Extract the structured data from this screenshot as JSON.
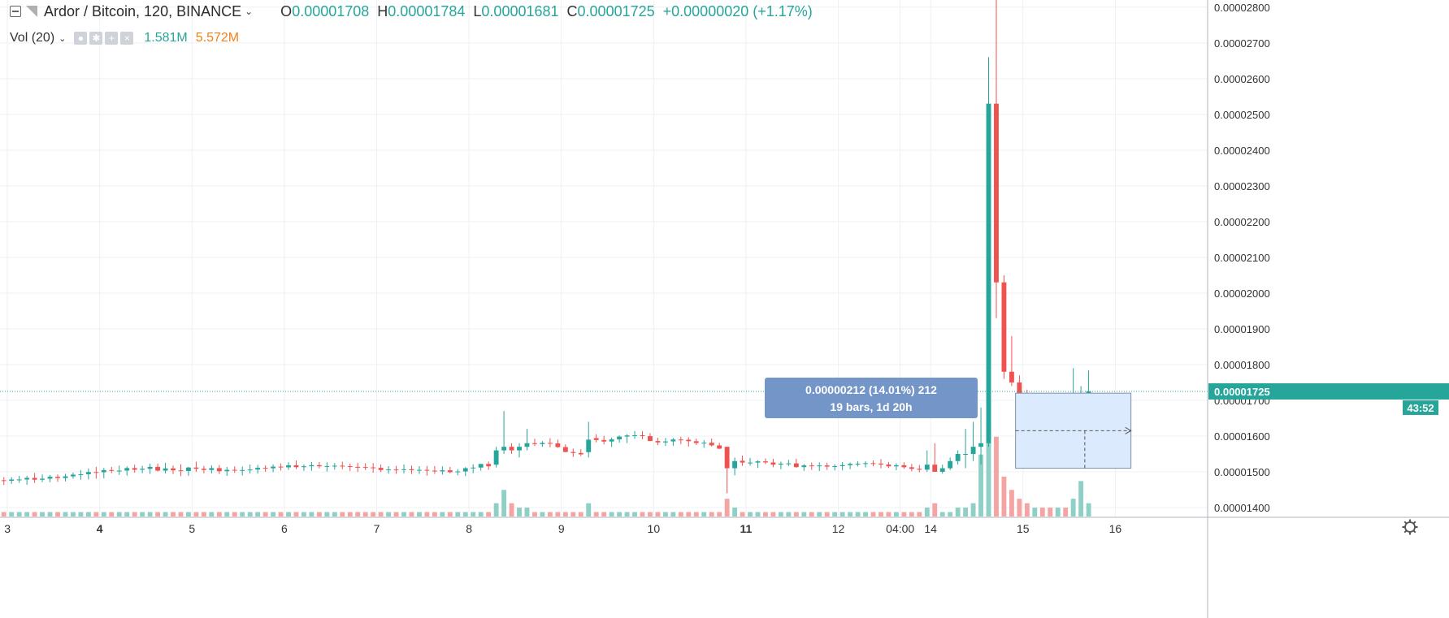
{
  "header": {
    "symbol": "Ardor / Bitcoin, 120, BINANCE",
    "o_label": "O",
    "o_value": "0.00001708",
    "h_label": "H",
    "h_value": "0.00001784",
    "l_label": "L",
    "l_value": "0.00001681",
    "c_label": "C",
    "c_value": "0.00001725",
    "change": "+0.00000020 (+1.17%)"
  },
  "volume_indicator": {
    "label": "Vol (20)",
    "value_1": "1.581M",
    "value_2": "5.572M"
  },
  "price_tag": {
    "price": "0.00001725",
    "countdown": "43:52"
  },
  "measure_tooltip": {
    "line1": "0.00000212 (14.01%) 212",
    "line2": "19 bars, 1d 20h"
  },
  "colors": {
    "up": "#26a69a",
    "down": "#ef5350",
    "up_volume": "#8fd0c6",
    "down_volume": "#f4a5a3",
    "measure_fill": "#dbeafc",
    "tooltip_bg": "#6d8fc4"
  },
  "icons": [
    "collapse-icon",
    "symbol-flag-icon",
    "chevron-down-icon",
    "eye-icon",
    "settings-icon",
    "plus-icon",
    "close-icon",
    "gear-icon"
  ],
  "chart_data": {
    "type": "candlestick",
    "symbol": "Ardor / Bitcoin",
    "interval_minutes": 120,
    "exchange": "BINANCE",
    "y_ticks": [
      1.4e-05,
      1.5e-05,
      1.6e-05,
      1.7e-05,
      1.8e-05,
      1.9e-05,
      2e-05,
      2.1e-05,
      2.2e-05,
      2.3e-05,
      2.4e-05,
      2.5e-05,
      2.6e-05,
      2.7e-05,
      2.8e-05
    ],
    "y_tick_labels": [
      "0.00001400",
      "0.00001500",
      "0.00001600",
      "0.00001700",
      "0.00001800",
      "0.00001900",
      "0.00002000",
      "0.00002100",
      "0.00002200",
      "0.00002300",
      "0.00002400",
      "0.00002500",
      "0.00002600",
      "0.00002700",
      "0.00002800"
    ],
    "ylim": [
      1.375e-05,
      2.82e-05
    ],
    "x_ticks": [
      {
        "t": 2,
        "label": "3"
      },
      {
        "t": 3,
        "label": "4"
      },
      {
        "t": 4,
        "label": "5"
      },
      {
        "t": 5,
        "label": "6"
      },
      {
        "t": 6,
        "label": "7"
      },
      {
        "t": 7,
        "label": "8"
      },
      {
        "t": 8,
        "label": "9"
      },
      {
        "t": 9,
        "label": "10"
      },
      {
        "t": 10,
        "label": "11"
      },
      {
        "t": 11,
        "label": "12"
      },
      {
        "t": 11.67,
        "label": "04:00"
      },
      {
        "t": 12,
        "label": "14"
      },
      {
        "t": 13,
        "label": "15"
      },
      {
        "t": 14,
        "label": "16"
      }
    ],
    "bold_x_labels": [
      "4",
      "11"
    ],
    "xlim": [
      1.92,
      15.0
    ],
    "bar_days": 0.08333,
    "ohlcv": [
      [
        1.4764e-05,
        1.4851e-05,
        1.4636e-05,
        1.4748e-05,
        1
      ],
      [
        1.475e-05,
        1.4853e-05,
        1.4664e-05,
        1.4784e-05,
        1
      ],
      [
        1.477e-05,
        1.4888e-05,
        1.469e-05,
        1.4785e-05,
        1
      ],
      [
        1.4785e-05,
        1.4888e-05,
        1.4635e-05,
        1.483e-05,
        1
      ],
      [
        1.483e-05,
        1.4968e-05,
        1.4687e-05,
        1.4778e-05,
        1
      ],
      [
        1.4778e-05,
        1.4925e-05,
        1.4711e-05,
        1.4808e-05,
        1
      ],
      [
        1.4808e-05,
        1.4912e-05,
        1.4708e-05,
        1.486e-05,
        1
      ],
      [
        1.486e-05,
        1.4925e-05,
        1.4719e-05,
        1.4826e-05,
        1
      ],
      [
        1.4826e-05,
        1.4944e-05,
        1.4732e-05,
        1.4873e-05,
        1
      ],
      [
        1.4873e-05,
        1.498e-05,
        1.4809e-05,
        1.4921e-05,
        1
      ],
      [
        1.4921e-05,
        1.5048e-05,
        1.4778e-05,
        1.4933e-05,
        1
      ],
      [
        1.4933e-05,
        1.5094e-05,
        1.4783e-05,
        1.4993e-05,
        1
      ],
      [
        1.4993e-05,
        1.514e-05,
        1.4807e-05,
        1.4987e-05,
        1
      ],
      [
        1.4987e-05,
        1.5108e-05,
        1.4818e-05,
        1.5049e-05,
        1
      ],
      [
        1.5049e-05,
        1.5136e-05,
        1.4962e-05,
        1.5025e-05,
        1
      ],
      [
        1.5025e-05,
        1.5175e-05,
        1.4914e-05,
        1.5034e-05,
        1
      ],
      [
        1.5034e-05,
        1.5153e-05,
        1.4894e-05,
        1.5105e-05,
        1
      ],
      [
        1.5105e-05,
        1.5199e-05,
        1.4974e-05,
        1.5057e-05,
        1
      ],
      [
        1.5057e-05,
        1.5167e-05,
        1.496e-05,
        1.5084e-05,
        1
      ],
      [
        1.5084e-05,
        1.5228e-05,
        1.494e-05,
        1.5139e-05,
        1
      ],
      [
        1.5139e-05,
        1.5233e-05,
        1.5007e-05,
        1.5033e-05,
        1
      ],
      [
        1.5033e-05,
        1.5251e-05,
        1.4953e-05,
        1.5096e-05,
        1
      ],
      [
        1.5096e-05,
        1.5175e-05,
        1.4938e-05,
        1.5041e-05,
        1
      ],
      [
        1.5041e-05,
        1.5212e-05,
        1.4881e-05,
        1.5023e-05,
        1
      ],
      [
        1.5023e-05,
        1.514e-05,
        1.4884e-05,
        1.512e-05,
        1
      ],
      [
        1.512e-05,
        1.5284e-05,
        1.4999e-05,
        1.5085e-05,
        1
      ],
      [
        1.5085e-05,
        1.5167e-05,
        1.4958e-05,
        1.5051e-05,
        1
      ],
      [
        1.5051e-05,
        1.5185e-05,
        1.4952e-05,
        1.5103e-05,
        1
      ],
      [
        1.5103e-05,
        1.519e-05,
        1.4938e-05,
        1.5017e-05,
        1
      ],
      [
        1.5017e-05,
        1.5138e-05,
        1.4887e-05,
        1.5055e-05,
        1
      ],
      [
        1.5055e-05,
        1.5153e-05,
        1.497e-05,
        1.5035e-05,
        1
      ],
      [
        1.5035e-05,
        1.5148e-05,
        1.4898e-05,
        1.5049e-05,
        1
      ],
      [
        1.5049e-05,
        1.5205e-05,
        1.4952e-05,
        1.5063e-05,
        1
      ],
      [
        1.5063e-05,
        1.5191e-05,
        1.4952e-05,
        1.5111e-05,
        1
      ],
      [
        1.5111e-05,
        1.5181e-05,
        1.4999e-05,
        1.5099e-05,
        1
      ],
      [
        1.5099e-05,
        1.5206e-05,
        1.4991e-05,
        1.5145e-05,
        1
      ],
      [
        1.5145e-05,
        1.5234e-05,
        1.5036e-05,
        1.5125e-05,
        1
      ],
      [
        1.5125e-05,
        1.5269e-05,
        1.5053e-05,
        1.5182e-05,
        1
      ],
      [
        1.5182e-05,
        1.5317e-05,
        1.5075e-05,
        1.513e-05,
        1
      ],
      [
        1.513e-05,
        1.5207e-05,
        1.5029e-05,
        1.5155e-05,
        1
      ],
      [
        1.5155e-05,
        1.5273e-05,
        1.5031e-05,
        1.5185e-05,
        1
      ],
      [
        1.5185e-05,
        1.5275e-05,
        1.5095e-05,
        1.5155e-05,
        1
      ],
      [
        1.5155e-05,
        1.5266e-05,
        1.5008e-05,
        1.516e-05,
        1
      ],
      [
        1.516e-05,
        1.5247e-05,
        1.5061e-05,
        1.5171e-05,
        1
      ],
      [
        1.5171e-05,
        1.5282e-05,
        1.5072e-05,
        1.5157e-05,
        1
      ],
      [
        1.5157e-05,
        1.5232e-05,
        1.5019e-05,
        1.5138e-05,
        1
      ],
      [
        1.5138e-05,
        1.5251e-05,
        1.4999e-05,
        1.5133e-05,
        1
      ],
      [
        1.5133e-05,
        1.5239e-05,
        1.5048e-05,
        1.5124e-05,
        1
      ],
      [
        1.5124e-05,
        1.5246e-05,
        1.4975e-05,
        1.5111e-05,
        1
      ],
      [
        1.5111e-05,
        1.5205e-05,
        1.4995e-05,
        1.505e-05,
        1
      ],
      [
        1.505e-05,
        1.5159e-05,
        1.4947e-05,
        1.5065e-05,
        1
      ],
      [
        1.5065e-05,
        1.5166e-05,
        1.4944e-05,
        1.5063e-05,
        1
      ],
      [
        1.5063e-05,
        1.5208e-05,
        1.4956e-05,
        1.5071e-05,
        1
      ],
      [
        1.5071e-05,
        1.5176e-05,
        1.4938e-05,
        1.5044e-05,
        1
      ],
      [
        1.5044e-05,
        1.5159e-05,
        1.4941e-05,
        1.5054e-05,
        1
      ],
      [
        1.5054e-05,
        1.5164e-05,
        1.4893e-05,
        1.5034e-05,
        1
      ],
      [
        1.5034e-05,
        1.516e-05,
        1.4942e-05,
        1.5012e-05,
        1
      ],
      [
        1.5012e-05,
        1.5153e-05,
        1.4919e-05,
        1.5042e-05,
        1
      ],
      [
        1.5042e-05,
        1.5136e-05,
        1.4959e-05,
        1.4989e-05,
        1
      ],
      [
        1.4989e-05,
        1.5076e-05,
        1.4903e-05,
        1.5011e-05,
        1
      ],
      [
        1.5011e-05,
        1.5132e-05,
        1.488e-05,
        1.5101e-05,
        1
      ],
      [
        1.5101e-05,
        1.5212e-05,
        1.4963e-05,
        1.5119e-05,
        1
      ],
      [
        1.5119e-05,
        1.5207e-05,
        1.5032e-05,
        1.522e-05,
        1
      ],
      [
        1.522e-05,
        1.5288e-05,
        1.5055e-05,
        1.5155e-05,
        1
      ],
      [
        1.52e-05,
        1.57e-05,
        1.512e-05,
        1.56e-05,
        3
      ],
      [
        1.56e-05,
        1.67e-05,
        1.55e-05,
        1.57e-05,
        6
      ],
      [
        1.57e-05,
        1.58e-05,
        1.55e-05,
        1.56e-05,
        3
      ],
      [
        1.56e-05,
        1.58e-05,
        1.54e-05,
        1.57e-05,
        2
      ],
      [
        1.57e-05,
        1.62e-05,
        1.56e-05,
        1.58e-05,
        2
      ],
      [
        1.58e-05,
        1.5923e-05,
        1.5717e-05,
        1.5775e-05,
        1
      ],
      [
        1.5775e-05,
        1.5859e-05,
        1.5699e-05,
        1.5808e-05,
        1
      ],
      [
        1.5808e-05,
        1.5941e-05,
        1.5686e-05,
        1.5796e-05,
        1
      ],
      [
        1.5796e-05,
        1.5901e-05,
        1.5673e-05,
        1.5692e-05,
        1
      ],
      [
        1.5692e-05,
        1.5767e-05,
        1.5549e-05,
        1.5554e-05,
        1
      ],
      [
        1.5554e-05,
        1.565e-05,
        1.5419e-05,
        1.5526e-05,
        1
      ],
      [
        1.5526e-05,
        1.5632e-05,
        1.5441e-05,
        1.5488e-05,
        1
      ],
      [
        1.555e-05,
        1.64e-05,
        1.54e-05,
        1.59e-05,
        3
      ],
      [
        1.5943e-05,
        1.6048e-05,
        1.5824e-05,
        1.5889e-05,
        1
      ],
      [
        1.5889e-05,
        1.601e-05,
        1.5767e-05,
        1.5847e-05,
        1
      ],
      [
        1.5847e-05,
        1.5961e-05,
        1.5695e-05,
        1.5907e-05,
        1
      ],
      [
        1.5907e-05,
        1.6019e-05,
        1.5813e-05,
        1.5986e-05,
        1
      ],
      [
        1.5986e-05,
        1.6056e-05,
        1.5801e-05,
        1.6018e-05,
        1
      ],
      [
        1.6018e-05,
        1.614e-05,
        1.5923e-05,
        1.6022e-05,
        1
      ],
      [
        1.6022e-05,
        1.6133e-05,
        1.5911e-05,
        1.5999e-05,
        1
      ],
      [
        1.5999e-05,
        1.608e-05,
        1.5902e-05,
        1.5861e-05,
        1
      ],
      [
        1.5861e-05,
        1.5954e-05,
        1.5748e-05,
        1.5823e-05,
        1
      ],
      [
        1.5823e-05,
        1.5948e-05,
        1.5724e-05,
        1.585e-05,
        1
      ],
      [
        1.585e-05,
        1.5945e-05,
        1.5728e-05,
        1.5904e-05,
        1
      ],
      [
        1.5904e-05,
        1.598e-05,
        1.5776e-05,
        1.5897e-05,
        1
      ],
      [
        1.5897e-05,
        1.5967e-05,
        1.5706e-05,
        1.5856e-05,
        1
      ],
      [
        1.5856e-05,
        1.5929e-05,
        1.5749e-05,
        1.5806e-05,
        1
      ],
      [
        1.5806e-05,
        1.5889e-05,
        1.5675e-05,
        1.5815e-05,
        1
      ],
      [
        1.5815e-05,
        1.5931e-05,
        1.5709e-05,
        1.5739e-05,
        1
      ],
      [
        1.5739e-05,
        1.5813e-05,
        1.5636e-05,
        1.5648e-05,
        1
      ],
      [
        1.57e-05,
        1.57e-05,
        1.44e-05,
        1.51e-05,
        4
      ],
      [
        1.51e-05,
        1.54e-05,
        1.49e-05,
        1.53e-05,
        2
      ],
      [
        1.5309e-05,
        1.5453e-05,
        1.5167e-05,
        1.5257e-05,
        1
      ],
      [
        1.5257e-05,
        1.539e-05,
        1.517e-05,
        1.5258e-05,
        1
      ],
      [
        1.5258e-05,
        1.5323e-05,
        1.5107e-05,
        1.5292e-05,
        1
      ],
      [
        1.5292e-05,
        1.5375e-05,
        1.5214e-05,
        1.5262e-05,
        1
      ],
      [
        1.5262e-05,
        1.5363e-05,
        1.5128e-05,
        1.5202e-05,
        1
      ],
      [
        1.5202e-05,
        1.5284e-05,
        1.5072e-05,
        1.5229e-05,
        1
      ],
      [
        1.5229e-05,
        1.5336e-05,
        1.5162e-05,
        1.5236e-05,
        1
      ],
      [
        1.5236e-05,
        1.5365e-05,
        1.5111e-05,
        1.5132e-05,
        1
      ],
      [
        1.5132e-05,
        1.5214e-05,
        1.5027e-05,
        1.5178e-05,
        1
      ],
      [
        1.5178e-05,
        1.5258e-05,
        1.5051e-05,
        1.5165e-05,
        1
      ],
      [
        1.5165e-05,
        1.5266e-05,
        1.5022e-05,
        1.5178e-05,
        1
      ],
      [
        1.5178e-05,
        1.5256e-05,
        1.5053e-05,
        1.5144e-05,
        1
      ],
      [
        1.5144e-05,
        1.5212e-05,
        1.504e-05,
        1.5159e-05,
        1
      ],
      [
        1.5159e-05,
        1.527e-05,
        1.5039e-05,
        1.5187e-05,
        1
      ],
      [
        1.5187e-05,
        1.5262e-05,
        1.5073e-05,
        1.5223e-05,
        1
      ],
      [
        1.5223e-05,
        1.5298e-05,
        1.515e-05,
        1.5227e-05,
        1
      ],
      [
        1.5227e-05,
        1.5296e-05,
        1.5123e-05,
        1.5242e-05,
        1
      ],
      [
        1.5242e-05,
        1.5316e-05,
        1.5157e-05,
        1.5231e-05,
        1
      ],
      [
        1.5231e-05,
        1.5352e-05,
        1.5098e-05,
        1.5204e-05,
        1
      ],
      [
        1.5204e-05,
        1.5276e-05,
        1.5105e-05,
        1.5153e-05,
        1
      ],
      [
        1.5153e-05,
        1.5238e-05,
        1.5046e-05,
        1.5183e-05,
        1
      ],
      [
        1.5183e-05,
        1.5266e-05,
        1.5082e-05,
        1.5128e-05,
        1
      ],
      [
        1.5128e-05,
        1.5221e-05,
        1.5014e-05,
        1.5083e-05,
        1
      ],
      [
        1.5083e-05,
        1.5191e-05,
        1.4987e-05,
        1.5058e-05,
        1
      ],
      [
        1.506e-05,
        1.56e-05,
        1.5e-05,
        1.52e-05,
        2
      ],
      [
        1.52e-05,
        1.58e-05,
        1.51e-05,
        1.5e-05,
        3
      ],
      [
        1.5e-05,
        1.52e-05,
        1.495e-05,
        1.51e-05,
        1
      ],
      [
        1.51e-05,
        1.54e-05,
        1.505e-05,
        1.53e-05,
        1
      ],
      [
        1.53e-05,
        1.56e-05,
        1.52e-05,
        1.55e-05,
        2
      ],
      [
        1.55e-05,
        1.62e-05,
        1.51e-05,
        1.55e-05,
        2
      ],
      [
        1.55e-05,
        1.64e-05,
        1.53e-05,
        1.57e-05,
        3
      ],
      [
        1.57e-05,
        1.68e-05,
        1.52e-05,
        1.58e-05,
        14
      ],
      [
        1.58e-05,
        2.66e-05,
        1.57e-05,
        2.53e-05,
        22
      ],
      [
        2.53e-05,
        2.82e-05,
        1.93e-05,
        2.03e-05,
        18
      ],
      [
        2.03e-05,
        2.05e-05,
        1.76e-05,
        1.78e-05,
        9
      ],
      [
        1.78e-05,
        1.88e-05,
        1.74e-05,
        1.75e-05,
        6
      ],
      [
        1.75e-05,
        1.77e-05,
        1.67e-05,
        1.71e-05,
        4
      ],
      [
        1.71e-05,
        1.73e-05,
        1.63e-05,
        1.66e-05,
        3
      ],
      [
        1.66e-05,
        1.68e-05,
        1.63e-05,
        1.67e-05,
        2
      ],
      [
        1.67e-05,
        1.68e-05,
        1.63e-05,
        1.65e-05,
        2
      ],
      [
        1.65e-05,
        1.68e-05,
        1.63e-05,
        1.63e-05,
        2
      ],
      [
        1.63e-05,
        1.7e-05,
        1.63e-05,
        1.69e-05,
        2
      ],
      [
        1.69e-05,
        1.71e-05,
        1.64e-05,
        1.65e-05,
        2
      ],
      [
        1.65e-05,
        1.79e-05,
        1.64e-05,
        1.66e-05,
        4
      ],
      [
        1.66e-05,
        1.74e-05,
        1.63e-05,
        1.71e-05,
        8
      ],
      [
        1.708e-05,
        1.784e-05,
        1.681e-05,
        1.725e-05,
        3
      ]
    ]
  }
}
